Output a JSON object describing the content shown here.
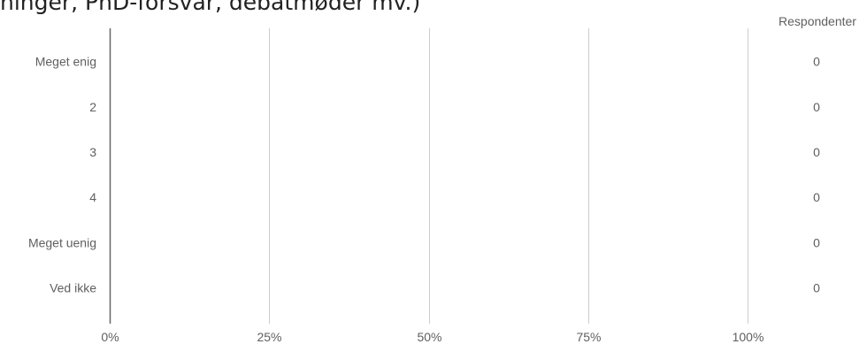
{
  "title": "ninger, PhD-forsvar, debatmøder mv.)",
  "chart_data": {
    "type": "bar",
    "orientation": "horizontal",
    "categories": [
      "Meget enig",
      "2",
      "3",
      "4",
      "Meget uenig",
      "Ved ikke"
    ],
    "series": [
      {
        "values": [
          0,
          0,
          0,
          0,
          0,
          0
        ]
      }
    ],
    "respondents_header": "Respondenter",
    "respondents": [
      0,
      0,
      0,
      0,
      0,
      0
    ],
    "x_ticks": [
      "0%",
      "25%",
      "50%",
      "75%",
      "100%"
    ],
    "x_tick_values": [
      0,
      25,
      50,
      75,
      100
    ],
    "xlim": [
      0,
      100
    ],
    "grid": true,
    "bar_color": "#3366cc",
    "axis_color": "#666666",
    "grid_color": "#cccccc"
  }
}
